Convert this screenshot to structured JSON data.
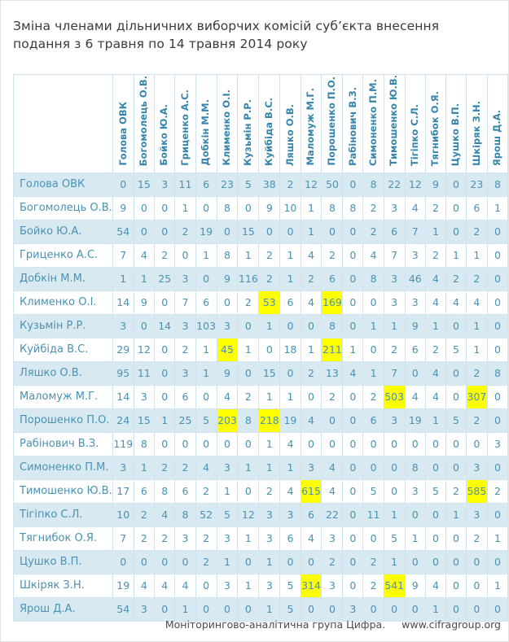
{
  "title": "Зміна членами дільничних виборчих комісій суб’єкта внесення подання з 6 травня по 14 травня 2014 року",
  "footer": {
    "org": "Моніторингово-аналітична група Цифра.",
    "url": "www.cifragroup.org"
  },
  "colors": {
    "cell_text": "#4792b5",
    "header_text": "#3585ac",
    "stripe": "#d9e9f2",
    "highlight": "#ffff00",
    "grid_border": "#cfe4ef",
    "outer_border": "#7db7d3",
    "title_text": "#3a3a3a",
    "footer_text": "#4a4a4a"
  },
  "chart_data": {
    "type": "table",
    "title": "Зміна членами дільничних виборчих комісій суб’єкта внесення подання з 6 травня по 14 травня 2014 року",
    "columns": [
      "Голова ОВК",
      "Богомолець О.В.",
      "Бойко Ю.А.",
      "Гриценко А.С.",
      "Добкін М.М.",
      "Клименко О.І.",
      "Кузьмін Р.Р.",
      "Куйбіда В.С.",
      "Ляшко О.В.",
      "Маломуж М.Г.",
      "Порошенко П.О.",
      "Рабінович В.З.",
      "Симоненко П.М.",
      "Тимошенко Ю.В.",
      "Тігіпко С.Л.",
      "Тягнибок О.Я.",
      "Цушко В.П.",
      "Шкіряк З.Н.",
      "Ярош Д.А."
    ],
    "rows": [
      {
        "label": "Голова ОВК",
        "values": [
          0,
          15,
          3,
          11,
          6,
          23,
          5,
          38,
          2,
          12,
          50,
          0,
          8,
          22,
          12,
          9,
          0,
          23,
          8
        ]
      },
      {
        "label": "Богомолець О.В.",
        "values": [
          9,
          0,
          0,
          1,
          0,
          8,
          0,
          9,
          10,
          1,
          8,
          8,
          2,
          3,
          4,
          2,
          0,
          6,
          1
        ]
      },
      {
        "label": "Бойко Ю.А.",
        "values": [
          54,
          0,
          0,
          2,
          19,
          0,
          15,
          0,
          0,
          1,
          0,
          0,
          2,
          6,
          7,
          1,
          0,
          2,
          0
        ]
      },
      {
        "label": "Гриценко А.С.",
        "values": [
          7,
          4,
          2,
          0,
          1,
          8,
          1,
          2,
          1,
          4,
          2,
          0,
          4,
          7,
          3,
          2,
          1,
          1,
          0
        ]
      },
      {
        "label": "Добкін М.М.",
        "values": [
          1,
          1,
          25,
          3,
          0,
          9,
          116,
          2,
          1,
          2,
          6,
          0,
          8,
          3,
          46,
          4,
          2,
          2,
          0
        ]
      },
      {
        "label": "Клименко О.І.",
        "values": [
          14,
          9,
          0,
          7,
          6,
          0,
          2,
          53,
          6,
          4,
          169,
          0,
          0,
          3,
          3,
          4,
          4,
          4,
          0
        ]
      },
      {
        "label": "Кузьмін Р.Р.",
        "values": [
          3,
          0,
          14,
          3,
          103,
          3,
          0,
          1,
          0,
          0,
          8,
          0,
          1,
          1,
          9,
          1,
          0,
          1,
          0
        ]
      },
      {
        "label": "Куйбіда В.С.",
        "values": [
          29,
          12,
          0,
          2,
          1,
          45,
          1,
          0,
          18,
          1,
          211,
          1,
          0,
          2,
          6,
          2,
          5,
          1,
          0
        ]
      },
      {
        "label": "Ляшко О.В.",
        "values": [
          95,
          11,
          0,
          3,
          1,
          9,
          0,
          15,
          0,
          2,
          13,
          4,
          1,
          7,
          0,
          4,
          0,
          2,
          8
        ]
      },
      {
        "label": "Маломуж М.Г.",
        "values": [
          14,
          3,
          0,
          6,
          0,
          4,
          2,
          1,
          1,
          0,
          2,
          0,
          2,
          503,
          4,
          4,
          0,
          307,
          0
        ]
      },
      {
        "label": "Порошенко П.О.",
        "values": [
          24,
          15,
          1,
          25,
          5,
          203,
          8,
          218,
          19,
          4,
          0,
          0,
          6,
          3,
          19,
          1,
          5,
          2,
          0
        ]
      },
      {
        "label": "Рабінович В.З.",
        "values": [
          119,
          8,
          0,
          0,
          0,
          0,
          0,
          1,
          4,
          0,
          0,
          0,
          0,
          0,
          0,
          0,
          0,
          0,
          3
        ]
      },
      {
        "label": "Симоненко П.М.",
        "values": [
          3,
          1,
          2,
          2,
          4,
          3,
          1,
          1,
          1,
          3,
          4,
          0,
          0,
          0,
          8,
          0,
          0,
          3,
          0
        ]
      },
      {
        "label": "Тимошенко Ю.В.",
        "values": [
          17,
          6,
          8,
          6,
          2,
          1,
          0,
          2,
          4,
          615,
          4,
          0,
          5,
          0,
          3,
          5,
          2,
          585,
          2
        ]
      },
      {
        "label": "Тігіпко С.Л.",
        "values": [
          10,
          2,
          4,
          8,
          52,
          5,
          12,
          3,
          3,
          6,
          22,
          0,
          11,
          1,
          0,
          0,
          1,
          3,
          0
        ]
      },
      {
        "label": "Тягнибок О.Я.",
        "values": [
          7,
          2,
          2,
          3,
          2,
          3,
          1,
          3,
          6,
          4,
          3,
          0,
          0,
          5,
          1,
          0,
          0,
          2,
          1
        ]
      },
      {
        "label": "Цушко В.П.",
        "values": [
          0,
          0,
          0,
          0,
          2,
          1,
          0,
          1,
          0,
          0,
          2,
          0,
          2,
          1,
          0,
          0,
          0,
          0,
          0
        ]
      },
      {
        "label": "Шкіряк З.Н.",
        "values": [
          19,
          4,
          4,
          4,
          0,
          3,
          1,
          3,
          5,
          314,
          3,
          0,
          2,
          541,
          9,
          4,
          0,
          0,
          1
        ]
      },
      {
        "label": "Ярош Д.А.",
        "values": [
          54,
          3,
          0,
          1,
          0,
          0,
          0,
          1,
          5,
          0,
          0,
          3,
          0,
          0,
          0,
          1,
          0,
          0,
          0
        ]
      }
    ],
    "highlights": [
      [
        5,
        7
      ],
      [
        5,
        10
      ],
      [
        7,
        5
      ],
      [
        7,
        10
      ],
      [
        9,
        13
      ],
      [
        9,
        17
      ],
      [
        10,
        5
      ],
      [
        10,
        7
      ],
      [
        13,
        9
      ],
      [
        13,
        17
      ],
      [
        17,
        9
      ],
      [
        17,
        13
      ]
    ],
    "layout": {
      "grid": "on",
      "stripe_rows": true,
      "column_headers_rotated": true
    }
  }
}
